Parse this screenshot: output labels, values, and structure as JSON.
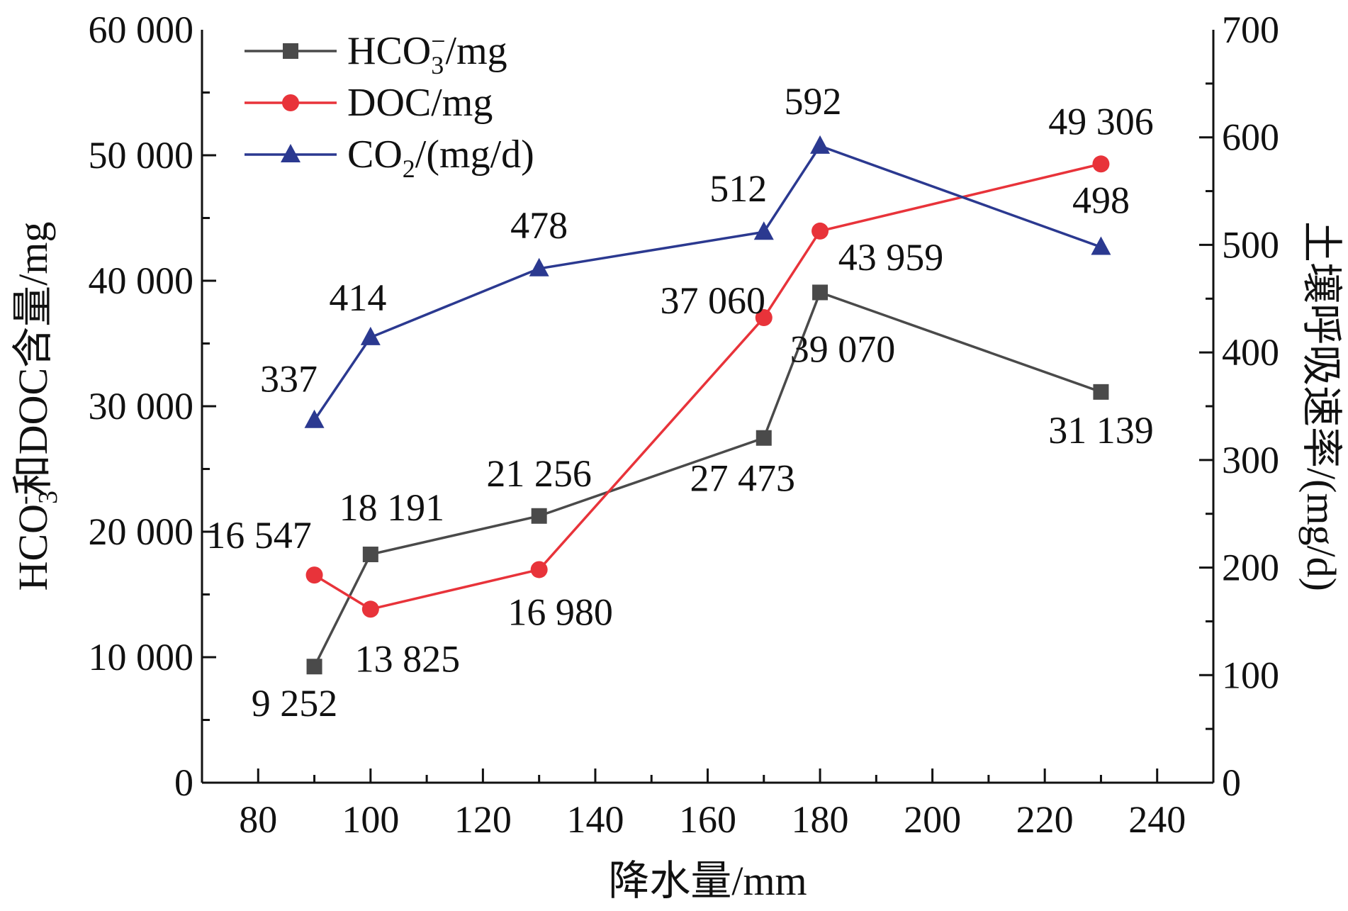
{
  "chart_data": {
    "type": "line",
    "xlabel": "降水量/mm",
    "ylabel_left": {
      "base": "HCO",
      "sub": "3",
      "sup": "-",
      "rest": "和DOC含量/mg"
    },
    "ylabel_right": "土壤呼吸速率/(mg/d)",
    "xlim": [
      70,
      250
    ],
    "ylim_left": [
      0,
      60000
    ],
    "ylim_right": [
      0,
      700
    ],
    "x_ticks": [
      80,
      100,
      120,
      140,
      160,
      180,
      200,
      220,
      240
    ],
    "x_tick_labels": [
      "80",
      "100",
      "120",
      "140",
      "160",
      "180",
      "200",
      "220",
      "240"
    ],
    "y_left_ticks": [
      0,
      10000,
      20000,
      30000,
      40000,
      50000,
      60000
    ],
    "y_left_tick_labels": [
      "0",
      "10 000",
      "20 000",
      "30 000",
      "40 000",
      "50 000",
      "60 000"
    ],
    "y_right_ticks": [
      0,
      100,
      200,
      300,
      400,
      500,
      600,
      700
    ],
    "y_right_tick_labels": [
      "0",
      "100",
      "200",
      "300",
      "400",
      "500",
      "600",
      "700"
    ],
    "grid": false,
    "legend_position": "top-left",
    "series": [
      {
        "name": {
          "base": "HCO",
          "sub": "3",
          "sup": "−",
          "rest": "/mg"
        },
        "axis": "left",
        "marker": "square",
        "color": "#4a4a4a",
        "x": [
          90,
          100,
          130,
          170,
          180,
          230
        ],
        "values": [
          9252,
          18191,
          21256,
          27473,
          39070,
          31139
        ],
        "labels": [
          "9 252",
          "18 191",
          "21 256",
          "27 473",
          "39 070",
          "31 139"
        ]
      },
      {
        "name": {
          "base": "DOC",
          "sub": "",
          "sup": "",
          "rest": "/mg"
        },
        "axis": "left",
        "marker": "circle",
        "color": "#e8333a",
        "x": [
          90,
          100,
          130,
          170,
          180,
          230
        ],
        "values": [
          16547,
          13825,
          16980,
          37060,
          43959,
          49306
        ],
        "labels": [
          "16 547",
          "13 825",
          "16 980",
          "37 060",
          "43 959",
          "49 306"
        ]
      },
      {
        "name": {
          "base": "CO",
          "sub": "2",
          "sup": "",
          "rest": "/(mg/d)"
        },
        "axis": "right",
        "marker": "triangle",
        "color": "#2b3990",
        "x": [
          90,
          100,
          130,
          170,
          180,
          230
        ],
        "values": [
          337,
          414,
          478,
          512,
          592,
          498
        ],
        "labels": [
          "337",
          "414",
          "478",
          "512",
          "592",
          "498"
        ]
      }
    ]
  }
}
